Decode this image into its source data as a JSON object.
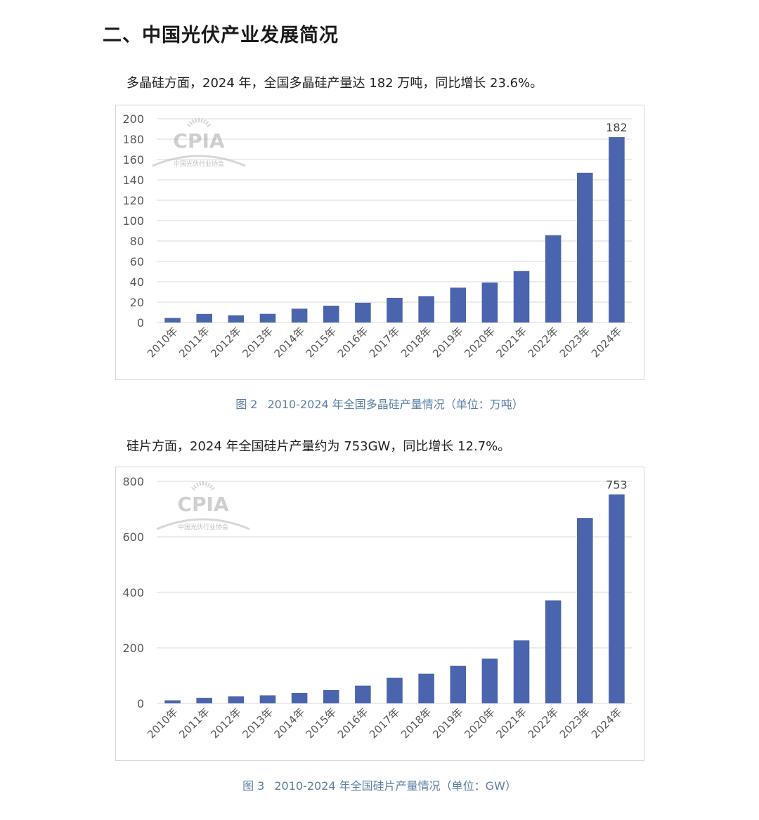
{
  "heading": "二、中国光伏产业发展简况",
  "paragraph1": "多晶硅方面，2024 年，全国多晶硅产量达 182 万吨，同比增长 23.6%。",
  "paragraph2": "硅片方面，2024 年全国硅片产量约为 753GW，同比增长 12.7%。",
  "watermark": {
    "logo": "CPIA",
    "org": "中国光伏行业协会"
  },
  "colors": {
    "bar": "#4a65ad",
    "grid": "#d9d9d9",
    "axis_text": "#595959",
    "caption": "#5b7fa6"
  },
  "chart_data": [
    {
      "type": "bar",
      "caption_no": "图 2",
      "caption_text": "2010-2024 年全国多晶硅产量情况（单位：万吨）",
      "categories": [
        "2010年",
        "2011年",
        "2012年",
        "2013年",
        "2014年",
        "2015年",
        "2016年",
        "2017年",
        "2018年",
        "2019年",
        "2020年",
        "2021年",
        "2022年",
        "2023年",
        "2024年"
      ],
      "values": [
        4.5,
        8.4,
        7.1,
        8.5,
        13.6,
        16.5,
        19.4,
        24.2,
        25.9,
        34.2,
        39.2,
        50.5,
        85.7,
        147,
        182
      ],
      "ylim": [
        0,
        200
      ],
      "yticks": [
        0,
        20,
        40,
        60,
        80,
        100,
        120,
        140,
        160,
        180,
        200
      ],
      "data_label_index": 14,
      "data_label": "182",
      "grid": true
    },
    {
      "type": "bar",
      "caption_no": "图 3",
      "caption_text": "2010-2024 年全国硅片产量情况（单位：GW）",
      "categories": [
        "2010年",
        "2011年",
        "2012年",
        "2013年",
        "2014年",
        "2015年",
        "2016年",
        "2017年",
        "2018年",
        "2019年",
        "2020年",
        "2021年",
        "2022年",
        "2023年",
        "2024年"
      ],
      "values": [
        11,
        20,
        25,
        29,
        38,
        48,
        64,
        92,
        107,
        135,
        161,
        227,
        371,
        668,
        753
      ],
      "ylim": [
        0,
        800
      ],
      "yticks": [
        0,
        200,
        400,
        600,
        800
      ],
      "data_label_index": 14,
      "data_label": "753",
      "grid": true
    }
  ]
}
